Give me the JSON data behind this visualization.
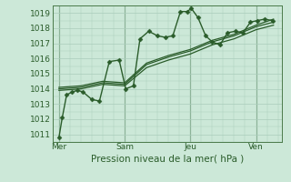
{
  "bg_color": "#cce8d8",
  "grid_color": "#aaccbb",
  "line_color": "#2a5c2a",
  "marker_color": "#2a5c2a",
  "xlabel": "Pression niveau de la mer( hPa )",
  "xlabel_fontsize": 7.5,
  "tick_label_color": "#2a5c2a",
  "tick_fontsize": 6.5,
  "ylim": [
    1010.5,
    1019.5
  ],
  "yticks": [
    1011,
    1012,
    1013,
    1014,
    1015,
    1016,
    1017,
    1018,
    1019
  ],
  "day_labels": [
    "Mer",
    "Sam",
    "Jeu",
    "Ven"
  ],
  "day_positions": [
    0,
    3,
    6,
    9
  ],
  "xlim": [
    -0.3,
    10.2
  ],
  "vline_color": "#4a7a4a",
  "series1": {
    "x": [
      0,
      0.15,
      0.35,
      0.6,
      0.85,
      1.1,
      1.5,
      1.85,
      2.3,
      2.75,
      3.05,
      3.4,
      3.7,
      4.1,
      4.5,
      4.85,
      5.2,
      5.55,
      5.85,
      6.05,
      6.35,
      6.7,
      7.0,
      7.35,
      7.7,
      8.05,
      8.4,
      8.75,
      9.05,
      9.4,
      9.75
    ],
    "y": [
      1010.8,
      1012.1,
      1013.6,
      1013.8,
      1013.9,
      1013.8,
      1013.3,
      1013.2,
      1015.8,
      1015.9,
      1014.0,
      1014.2,
      1017.3,
      1017.8,
      1017.5,
      1017.4,
      1017.5,
      1019.1,
      1019.1,
      1019.3,
      1018.7,
      1017.5,
      1017.1,
      1016.9,
      1017.7,
      1017.8,
      1017.7,
      1018.4,
      1018.5,
      1018.6,
      1018.5
    ],
    "marker": "D",
    "markersize": 2.5,
    "linewidth": 1.0
  },
  "series2": {
    "x": [
      0,
      1.0,
      2.0,
      3.0,
      4.0,
      5.0,
      6.0,
      7.0,
      8.0,
      9.0,
      9.8
    ],
    "y": [
      1013.9,
      1014.0,
      1014.3,
      1014.2,
      1015.4,
      1015.9,
      1016.3,
      1016.9,
      1017.3,
      1017.9,
      1018.2
    ],
    "linewidth": 0.9
  },
  "series3": {
    "x": [
      0,
      1.0,
      2.0,
      3.0,
      4.0,
      5.0,
      6.0,
      7.0,
      8.0,
      9.0,
      9.8
    ],
    "y": [
      1014.0,
      1014.1,
      1014.4,
      1014.3,
      1015.6,
      1016.1,
      1016.5,
      1017.1,
      1017.5,
      1018.1,
      1018.4
    ],
    "linewidth": 0.9
  },
  "series4": {
    "x": [
      0,
      1.0,
      2.0,
      3.0,
      4.0,
      5.0,
      6.0,
      7.0,
      8.0,
      9.0,
      9.8
    ],
    "y": [
      1014.1,
      1014.2,
      1014.5,
      1014.4,
      1015.7,
      1016.2,
      1016.6,
      1017.2,
      1017.6,
      1018.2,
      1018.6
    ],
    "linewidth": 0.9
  }
}
